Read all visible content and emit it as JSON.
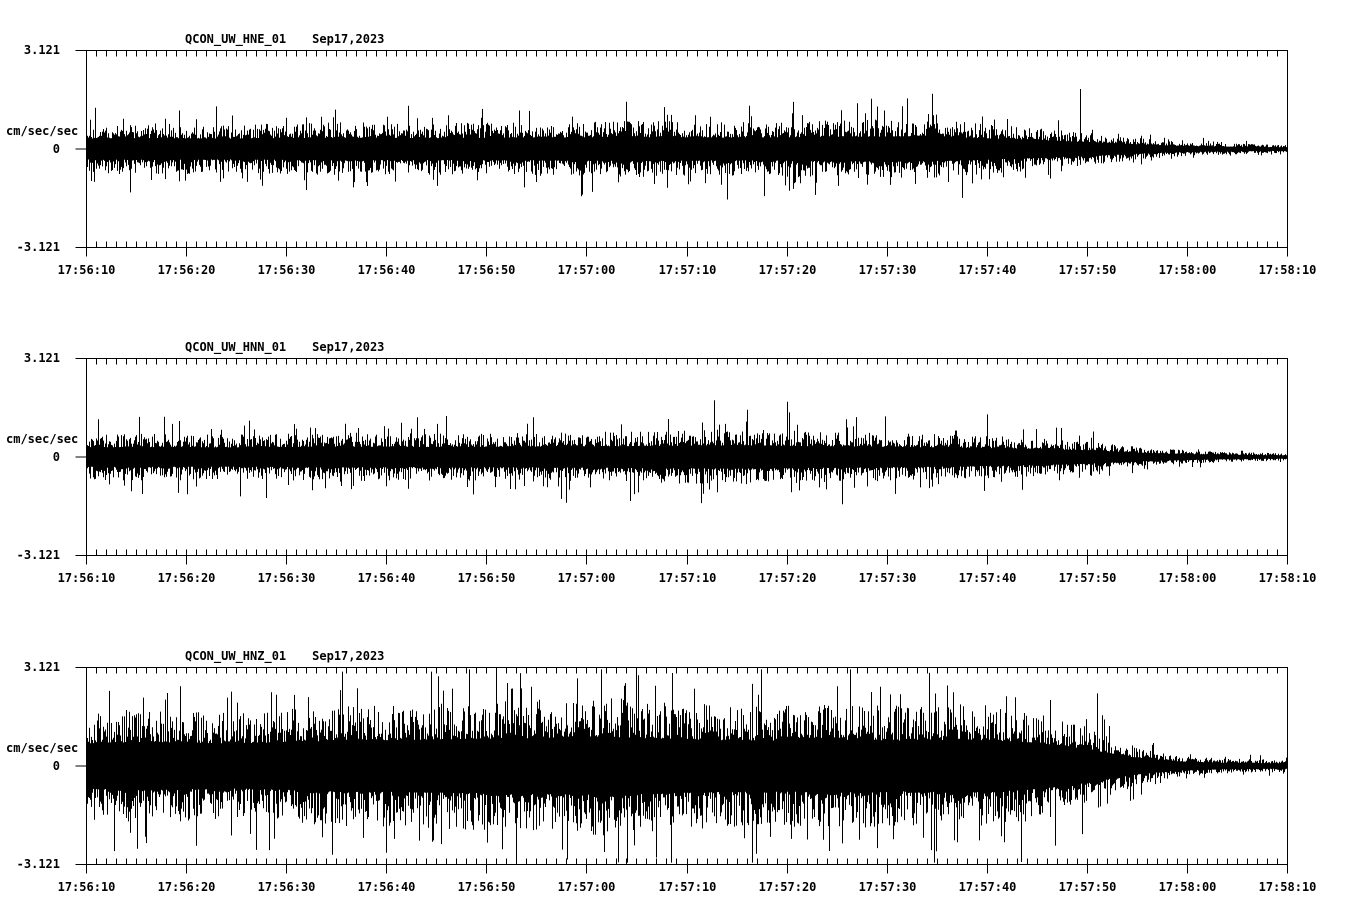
{
  "page": {
    "background": "#ffffff",
    "foreground": "#000000"
  },
  "chart_data": [
    {
      "type": "line",
      "kind": "seismogram-trace",
      "title": "QCON_UW_HNE_01",
      "date": "Sep17,2023",
      "ylabel": "cm/sec/sec",
      "yticks": [
        "3.121",
        "0",
        "-3.121"
      ],
      "ylim": [
        -3.121,
        3.121
      ],
      "x_start": "17:56:10",
      "x_end": "17:58:10",
      "duration_seconds": 120,
      "minor_tick_seconds": 1,
      "major_tick_seconds": 10,
      "x_ticklabels": [
        "17:56:10",
        "17:56:20",
        "17:56:30",
        "17:56:40",
        "17:56:50",
        "17:57:00",
        "17:57:10",
        "17:57:20",
        "17:57:30",
        "17:57:40",
        "17:57:50",
        "17:58:00",
        "17:58:10"
      ],
      "waveform": {
        "seed": 101,
        "envelope_t": [
          0,
          5,
          15,
          25,
          35,
          45,
          55,
          65,
          75,
          82,
          88,
          94,
          100,
          104,
          108,
          112,
          116,
          120
        ],
        "envelope_amp": [
          0.78,
          0.82,
          0.78,
          0.85,
          0.82,
          0.85,
          0.9,
          0.85,
          0.92,
          0.95,
          0.85,
          0.7,
          0.52,
          0.38,
          0.26,
          0.2,
          0.16,
          0.13
        ],
        "spikes": [
          [
            13,
            1.35
          ],
          [
            22,
            -1.3
          ],
          [
            49.5,
            -1.5
          ],
          [
            54,
            1.5
          ],
          [
            64,
            -1.6
          ],
          [
            77,
            1.45
          ],
          [
            84.5,
            1.75
          ],
          [
            87.5,
            -1.55
          ],
          [
            99.3,
            1.9
          ]
        ]
      }
    },
    {
      "type": "line",
      "kind": "seismogram-trace",
      "title": "QCON_UW_HNN_01",
      "date": "Sep17,2023",
      "ylabel": "cm/sec/sec",
      "yticks": [
        "3.121",
        "0",
        "-3.121"
      ],
      "ylim": [
        -3.121,
        3.121
      ],
      "x_start": "17:56:10",
      "x_end": "17:58:10",
      "duration_seconds": 120,
      "minor_tick_seconds": 1,
      "major_tick_seconds": 10,
      "x_ticklabels": [
        "17:56:10",
        "17:56:20",
        "17:56:30",
        "17:56:40",
        "17:56:50",
        "17:57:00",
        "17:57:10",
        "17:57:20",
        "17:57:30",
        "17:57:40",
        "17:57:50",
        "17:58:00",
        "17:58:10"
      ],
      "waveform": {
        "seed": 202,
        "envelope_t": [
          0,
          5,
          15,
          25,
          35,
          45,
          55,
          65,
          75,
          82,
          88,
          94,
          100,
          104,
          108,
          112,
          116,
          120
        ],
        "envelope_amp": [
          0.72,
          0.75,
          0.72,
          0.78,
          0.75,
          0.78,
          0.82,
          0.88,
          0.8,
          0.75,
          0.7,
          0.62,
          0.5,
          0.36,
          0.25,
          0.19,
          0.15,
          0.12
        ],
        "spikes": [
          [
            18,
            -1.3
          ],
          [
            36,
            1.3
          ],
          [
            48,
            -1.45
          ],
          [
            62.7,
            1.8
          ],
          [
            66,
            1.5
          ],
          [
            70,
            1.75
          ],
          [
            75.5,
            -1.5
          ],
          [
            90,
            1.35
          ]
        ]
      }
    },
    {
      "type": "line",
      "kind": "seismogram-trace",
      "title": "QCON_UW_HNZ_01",
      "date": "Sep17,2023",
      "ylabel": "cm/sec/sec",
      "yticks": [
        "3.121",
        "0",
        "-3.121"
      ],
      "ylim": [
        -3.121,
        3.121
      ],
      "x_start": "17:56:10",
      "x_end": "17:58:10",
      "duration_seconds": 120,
      "minor_tick_seconds": 1,
      "major_tick_seconds": 10,
      "x_ticklabels": [
        "17:56:10",
        "17:56:20",
        "17:56:30",
        "17:56:40",
        "17:56:50",
        "17:57:00",
        "17:57:10",
        "17:57:20",
        "17:57:30",
        "17:57:40",
        "17:57:50",
        "17:58:00",
        "17:58:10"
      ],
      "waveform": {
        "seed": 303,
        "envelope_t": [
          0,
          5,
          15,
          25,
          35,
          45,
          52,
          60,
          68,
          75,
          82,
          88,
          94,
          98,
          102,
          105,
          109,
          113,
          120
        ],
        "envelope_amp": [
          1.7,
          1.8,
          1.7,
          1.9,
          2.0,
          2.1,
          2.2,
          2.0,
          1.9,
          2.0,
          1.9,
          2.0,
          1.8,
          1.5,
          1.0,
          0.6,
          0.35,
          0.25,
          0.2
        ],
        "spikes": [
          [
            30,
            -2.75
          ],
          [
            41,
            3.1
          ],
          [
            43,
            -3.0
          ],
          [
            51.5,
            3.1
          ],
          [
            53.2,
            -3.05
          ],
          [
            57,
            -2.9
          ],
          [
            66.5,
            2.6
          ],
          [
            79,
            -2.6
          ],
          [
            86,
            2.55
          ],
          [
            101,
            2.3
          ]
        ]
      }
    }
  ]
}
